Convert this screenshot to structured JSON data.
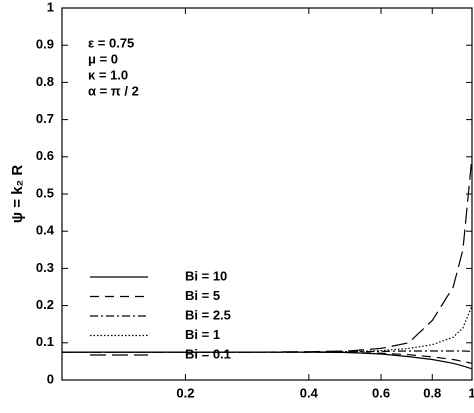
{
  "chart_data": {
    "type": "line",
    "ylabel": "ψ = k₂ R",
    "annotations": [
      "ε = 0.75",
      "μ = 0",
      "κ = 1.0",
      "α = π / 2"
    ],
    "xscale": "log",
    "x": [
      0.1,
      0.2,
      0.3,
      0.4,
      0.5,
      0.6,
      0.7,
      0.8,
      0.9,
      0.95,
      1.0
    ],
    "series": [
      {
        "name": "Bi = 10",
        "color": "#000000",
        "dash": "none",
        "values": [
          0.075,
          0.075,
          0.075,
          0.075,
          0.074,
          0.07,
          0.063,
          0.055,
          0.045,
          0.038,
          0.03
        ]
      },
      {
        "name": "Bi = 5",
        "color": "#000000",
        "dash": "9,6",
        "values": [
          0.075,
          0.075,
          0.075,
          0.075,
          0.074,
          0.072,
          0.068,
          0.062,
          0.055,
          0.05,
          0.045
        ]
      },
      {
        "name": "Bi = 2.5",
        "color": "#000000",
        "dash": "8,3,2,3",
        "values": [
          0.075,
          0.075,
          0.075,
          0.075,
          0.076,
          0.077,
          0.078,
          0.078,
          0.078,
          0.078,
          0.077
        ]
      },
      {
        "name": "Bi = 1",
        "color": "#000000",
        "dash": "1.5,2",
        "values": [
          0.075,
          0.075,
          0.075,
          0.075,
          0.076,
          0.079,
          0.085,
          0.095,
          0.115,
          0.14,
          0.2
        ]
      },
      {
        "name": "Bi = 0.1",
        "color": "#000000",
        "dash": "16,6",
        "values": [
          0.075,
          0.075,
          0.075,
          0.076,
          0.078,
          0.085,
          0.1,
          0.16,
          0.25,
          0.35,
          0.6
        ]
      }
    ],
    "xlim": [
      0.1,
      1
    ],
    "xticks": [
      0.2,
      0.4,
      0.6,
      0.8,
      1
    ],
    "ylim": [
      0,
      1
    ],
    "yticks": [
      0,
      0.1,
      0.2,
      0.3,
      0.4,
      0.5,
      0.6,
      0.7,
      0.8,
      0.9,
      1
    ],
    "grid": false
  }
}
